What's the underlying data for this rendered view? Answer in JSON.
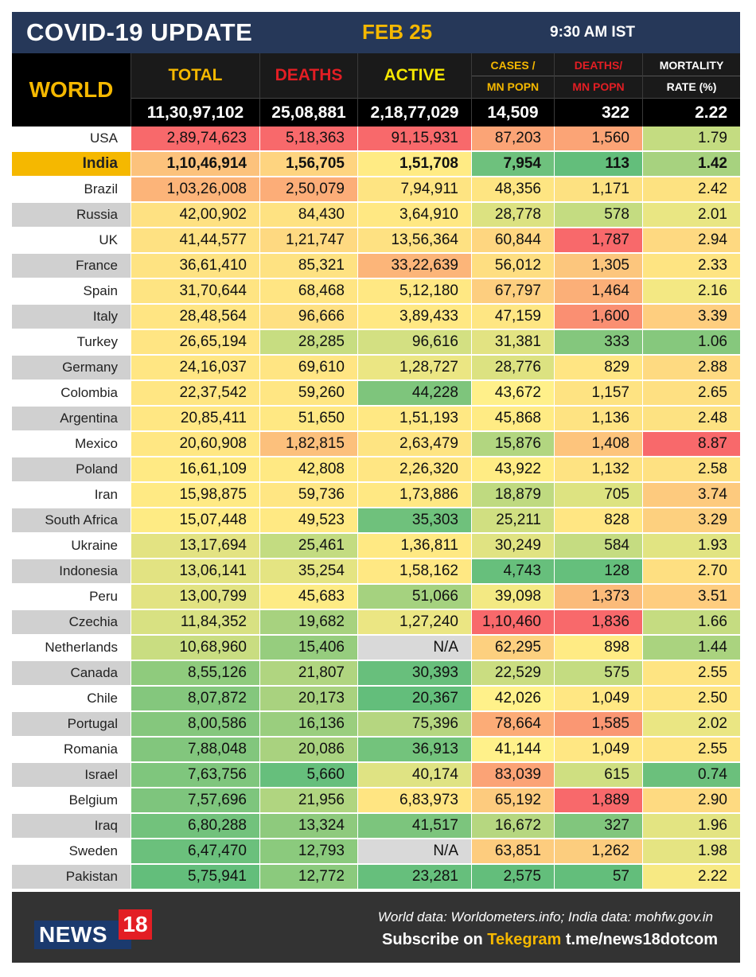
{
  "header": {
    "title": "COVID-19 UPDATE",
    "date": "FEB 25",
    "time": "9:30 AM IST"
  },
  "columns": {
    "region": "WORLD",
    "total": "TOTAL",
    "deaths": "DEATHS",
    "active": "ACTIVE",
    "cases_per_mn_1": "CASES /",
    "cases_per_mn_2": "MN POPN",
    "deaths_per_mn_1": "DEATHS/",
    "deaths_per_mn_2": "MN POPN",
    "mortality_1": "MORTALITY",
    "mortality_2": "RATE (%)"
  },
  "world_totals": {
    "total": "11,30,97,102",
    "deaths": "25,08,881",
    "active": "2,18,77,029",
    "cases_per_mn": "14,509",
    "deaths_per_mn": "322",
    "mortality": "2.22"
  },
  "colors": {
    "title_bg": "#263859",
    "accent_yellow": "#f5b800",
    "deaths_red": "#e31e24",
    "highlight_row": "#f5b800",
    "footer_bg": "#333333"
  },
  "rows": [
    {
      "country": "USA",
      "total": "2,89,74,623",
      "deaths": "5,18,363",
      "active": "91,15,931",
      "cases_mn": "87,203",
      "deaths_mn": "1,560",
      "mortality": "1.79",
      "colors": [
        "#f8696b",
        "#f8696b",
        "#f8696b",
        "#fba476",
        "#fba476",
        "#c4dc81"
      ]
    },
    {
      "country": "India",
      "total": "1,10,46,914",
      "deaths": "1,56,705",
      "active": "1,51,708",
      "cases_mn": "7,954",
      "deaths_mn": "113",
      "mortality": "1.42",
      "highlight": true,
      "colors": [
        "#fcc27c",
        "#fed480",
        "#ffeb84",
        "#6ec17d",
        "#63be7b",
        "#a7d27f"
      ]
    },
    {
      "country": "Brazil",
      "total": "1,03,26,008",
      "deaths": "2,50,079",
      "active": "7,94,911",
      "cases_mn": "48,356",
      "deaths_mn": "1,171",
      "mortality": "2.42",
      "colors": [
        "#fcb479",
        "#fcad78",
        "#fee482",
        "#fee582",
        "#fde181",
        "#fde281"
      ]
    },
    {
      "country": "Russia",
      "total": "42,00,902",
      "deaths": "84,430",
      "active": "3,64,910",
      "cases_mn": "28,778",
      "deaths_mn": "578",
      "mortality": "2.01",
      "colors": [
        "#fee182",
        "#fee282",
        "#ffe883",
        "#dce281",
        "#c4dc81",
        "#e9e683"
      ]
    },
    {
      "country": "UK",
      "total": "41,44,577",
      "deaths": "1,21,747",
      "active": "13,56,364",
      "cases_mn": "60,844",
      "deaths_mn": "1,787",
      "mortality": "2.94",
      "colors": [
        "#fee182",
        "#fed981",
        "#fee182",
        "#fed680",
        "#f8696b",
        "#fed981"
      ]
    },
    {
      "country": "France",
      "total": "36,61,410",
      "deaths": "85,321",
      "active": "33,22,639",
      "cases_mn": "56,012",
      "deaths_mn": "1,305",
      "mortality": "2.33",
      "colors": [
        "#fee382",
        "#fee282",
        "#fcb579",
        "#fede81",
        "#fcc67d",
        "#fee482"
      ]
    },
    {
      "country": "Spain",
      "total": "31,70,644",
      "deaths": "68,468",
      "active": "5,12,180",
      "cases_mn": "67,797",
      "deaths_mn": "1,464",
      "mortality": "2.16",
      "colors": [
        "#fee482",
        "#ffe583",
        "#ffe883",
        "#fdce7f",
        "#fbaf78",
        "#f3e883"
      ]
    },
    {
      "country": "Italy",
      "total": "28,48,564",
      "deaths": "96,666",
      "active": "3,89,433",
      "cases_mn": "47,159",
      "deaths_mn": "1,600",
      "mortality": "3.39",
      "colors": [
        "#ffe583",
        "#fee082",
        "#ffe883",
        "#fee683",
        "#fa8f72",
        "#fece7f"
      ]
    },
    {
      "country": "Turkey",
      "total": "26,65,194",
      "deaths": "28,285",
      "active": "96,616",
      "cases_mn": "31,381",
      "deaths_mn": "333",
      "mortality": "1.06",
      "colors": [
        "#ffe583",
        "#c7dd81",
        "#d3e082",
        "#e2e382",
        "#84c77d",
        "#86c87d"
      ]
    },
    {
      "country": "Germany",
      "total": "24,16,037",
      "deaths": "69,610",
      "active": "1,28,727",
      "cases_mn": "28,776",
      "deaths_mn": "829",
      "mortality": "2.88",
      "colors": [
        "#ffe683",
        "#ffe583",
        "#ebe683",
        "#dce281",
        "#ffe583",
        "#feda81"
      ]
    },
    {
      "country": "Colombia",
      "total": "22,37,542",
      "deaths": "59,260",
      "active": "44,228",
      "cases_mn": "43,672",
      "deaths_mn": "1,157",
      "mortality": "2.65",
      "colors": [
        "#ffe683",
        "#ffe683",
        "#7ec57c",
        "#fff08a",
        "#fee382",
        "#fee082"
      ]
    },
    {
      "country": "Argentina",
      "total": "20,85,411",
      "deaths": "51,650",
      "active": "1,51,193",
      "cases_mn": "45,868",
      "deaths_mn": "1,136",
      "mortality": "2.48",
      "colors": [
        "#ffe783",
        "#ffe883",
        "#ffe883",
        "#ffeb84",
        "#fee382",
        "#fde282"
      ]
    },
    {
      "country": "Mexico",
      "total": "20,60,908",
      "deaths": "1,82,815",
      "active": "2,63,479",
      "cases_mn": "15,876",
      "deaths_mn": "1,408",
      "mortality": "8.87",
      "colors": [
        "#ffe783",
        "#fcc07c",
        "#fee482",
        "#b2d680",
        "#fdc47c",
        "#f8696b"
      ]
    },
    {
      "country": "Poland",
      "total": "16,61,109",
      "deaths": "42,808",
      "active": "2,26,320",
      "cases_mn": "43,922",
      "deaths_mn": "1,132",
      "mortality": "2.58",
      "colors": [
        "#ffea84",
        "#ffe983",
        "#ffe683",
        "#ffec84",
        "#fee382",
        "#fee182"
      ]
    },
    {
      "country": "Iran",
      "total": "15,98,875",
      "deaths": "59,736",
      "active": "1,73,886",
      "cases_mn": "18,879",
      "deaths_mn": "705",
      "mortality": "3.74",
      "colors": [
        "#ffea84",
        "#ffe683",
        "#ffe883",
        "#bfda80",
        "#dde381",
        "#fdca7e"
      ]
    },
    {
      "country": "South Africa",
      "total": "15,07,448",
      "deaths": "49,523",
      "active": "35,303",
      "cases_mn": "25,211",
      "deaths_mn": "828",
      "mortality": "3.29",
      "colors": [
        "#feeb84",
        "#ffe983",
        "#6fc17c",
        "#d0df81",
        "#ffe683",
        "#fdd07f"
      ]
    },
    {
      "country": "Ukraine",
      "total": "13,17,694",
      "deaths": "25,461",
      "active": "1,36,811",
      "cases_mn": "30,249",
      "deaths_mn": "584",
      "mortality": "1.93",
      "colors": [
        "#e3e382",
        "#c3dc81",
        "#ffe983",
        "#e0e382",
        "#c5dc81",
        "#e1e482"
      ]
    },
    {
      "country": "Indonesia",
      "total": "13,06,141",
      "deaths": "35,254",
      "active": "1,58,162",
      "cases_mn": "4,743",
      "deaths_mn": "128",
      "mortality": "2.70",
      "colors": [
        "#e2e382",
        "#e4e482",
        "#ffe883",
        "#67bf7c",
        "#65bf7c",
        "#fedf81"
      ]
    },
    {
      "country": "Peru",
      "total": "13,00,799",
      "deaths": "45,683",
      "active": "51,066",
      "cases_mn": "39,098",
      "deaths_mn": "1,373",
      "mortality": "3.51",
      "colors": [
        "#e2e382",
        "#fdeb84",
        "#a5d27f",
        "#f3e983",
        "#fbbb7a",
        "#fecd7f"
      ]
    },
    {
      "country": "Czechia",
      "total": "11,84,352",
      "deaths": "19,682",
      "active": "1,27,240",
      "cases_mn": "1,10,460",
      "deaths_mn": "1,836",
      "mortality": "1.66",
      "colors": [
        "#d8e182",
        "#a7d27f",
        "#ebe683",
        "#f8696b",
        "#f8696b",
        "#c5dc81"
      ]
    },
    {
      "country": "Netherlands",
      "total": "10,68,960",
      "deaths": "15,406",
      "active": "N/A",
      "cases_mn": "62,295",
      "deaths_mn": "898",
      "mortality": "1.44",
      "colors": [
        "#c9dd81",
        "#96cd7e",
        "#d9d9d9",
        "#fdd07f",
        "#ffeb84",
        "#aad37f"
      ]
    },
    {
      "country": "Canada",
      "total": "8,55,126",
      "deaths": "21,807",
      "active": "30,393",
      "cases_mn": "22,529",
      "deaths_mn": "575",
      "mortality": "2.55",
      "colors": [
        "#8fcb7d",
        "#b0d580",
        "#68bf7c",
        "#cadd81",
        "#c4dc81",
        "#fee482"
      ]
    },
    {
      "country": "Chile",
      "total": "8,07,872",
      "deaths": "20,173",
      "active": "20,367",
      "cases_mn": "42,026",
      "deaths_mn": "1,049",
      "mortality": "2.50",
      "colors": [
        "#84c77d",
        "#a9d27f",
        "#63be7b",
        "#fff18a",
        "#ffe783",
        "#fee582"
      ]
    },
    {
      "country": "Portugal",
      "total": "8,00,586",
      "deaths": "16,136",
      "active": "75,396",
      "cases_mn": "78,664",
      "deaths_mn": "1,585",
      "mortality": "2.02",
      "colors": [
        "#85c77d",
        "#9ace7e",
        "#b5d680",
        "#fcac77",
        "#fa9773",
        "#eae683"
      ]
    },
    {
      "country": "Romania",
      "total": "7,88,048",
      "deaths": "20,086",
      "active": "36,913",
      "cases_mn": "41,144",
      "deaths_mn": "1,049",
      "mortality": "2.55",
      "colors": [
        "#82c67d",
        "#a9d27f",
        "#73c37c",
        "#fff18a",
        "#ffe783",
        "#fee482"
      ]
    },
    {
      "country": "Israel",
      "total": "7,63,756",
      "deaths": "5,660",
      "active": "40,174",
      "cases_mn": "83,039",
      "deaths_mn": "615",
      "mortality": "0.74",
      "colors": [
        "#7fc67d",
        "#66bf7c",
        "#dfe383",
        "#fba376",
        "#cfdf81",
        "#6bc07c"
      ]
    },
    {
      "country": "Belgium",
      "total": "7,57,696",
      "deaths": "21,956",
      "active": "6,83,973",
      "cases_mn": "65,192",
      "deaths_mn": "1,889",
      "mortality": "2.90",
      "colors": [
        "#7ec57d",
        "#b0d580",
        "#ffe582",
        "#fdcb7e",
        "#f8696b",
        "#feda81"
      ]
    },
    {
      "country": "Iraq",
      "total": "6,80,288",
      "deaths": "13,324",
      "active": "41,517",
      "cases_mn": "16,672",
      "deaths_mn": "327",
      "mortality": "1.96",
      "colors": [
        "#72c27c",
        "#8eca7d",
        "#7cc57d",
        "#b6d780",
        "#81c67d",
        "#e3e482"
      ]
    },
    {
      "country": "Sweden",
      "total": "6,47,470",
      "deaths": "12,793",
      "active": "N/A",
      "cases_mn": "63,851",
      "deaths_mn": "1,262",
      "mortality": "1.98",
      "colors": [
        "#6bc07c",
        "#8bca7d",
        "#d9d9d9",
        "#fdcc7e",
        "#fccd7e",
        "#e5e482"
      ]
    },
    {
      "country": "Pakistan",
      "total": "5,75,941",
      "deaths": "12,772",
      "active": "23,281",
      "cases_mn": "2,575",
      "deaths_mn": "57",
      "mortality": "2.22",
      "colors": [
        "#63be7b",
        "#8bca7d",
        "#66bf7c",
        "#63be7b",
        "#63be7b",
        "#f7e983"
      ]
    }
  ],
  "footer": {
    "logo_text": "NEWS",
    "logo_num": "18",
    "source": "World data: Worldometers.info; India data: mohfw.gov.in",
    "subscribe_prefix": "Subscribe on ",
    "subscribe_highlight": "Tekegram",
    "subscribe_suffix": " t.me/news18dotcom"
  }
}
